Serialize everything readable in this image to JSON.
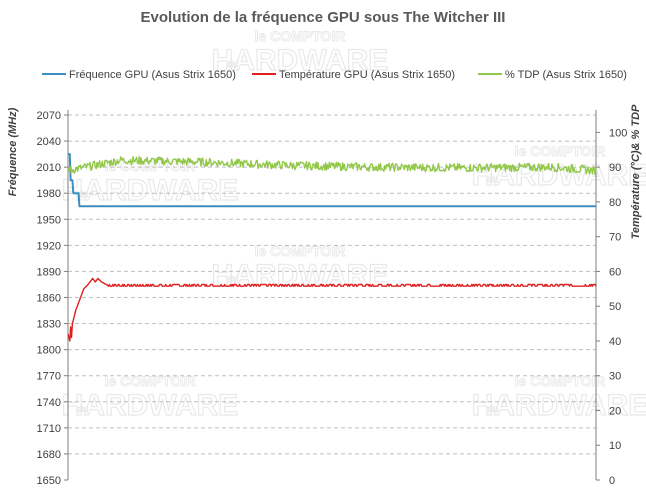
{
  "watermark": {
    "line1": "le COMPTOIR",
    "line2": "HARDWARE",
    "du": "du"
  },
  "chart_data": {
    "type": "line",
    "title": "Evolution de la fréquence GPU sous The Witcher III",
    "legend_position": "top",
    "grid": true,
    "y_left": {
      "label": "Fréquence (MHz)",
      "min": 1650,
      "max": 2070,
      "step": 30,
      "ticks": [
        "1650",
        "1680",
        "1710",
        "1740",
        "1770",
        "1800",
        "1830",
        "1860",
        "1890",
        "1920",
        "1950",
        "1980",
        "2010",
        "2040",
        "2070"
      ]
    },
    "y_right": {
      "label": "Température (°C)& % TDP",
      "min": 0,
      "max": 105,
      "step": 10,
      "ticks": [
        "0",
        "10",
        "20",
        "30",
        "40",
        "50",
        "60",
        "70",
        "80",
        "90",
        "100"
      ]
    },
    "x": {
      "min": 0,
      "max": 600
    },
    "series": [
      {
        "name": "Fréquence GPU (Asus Strix 1650)",
        "color": "#3a8fc0",
        "axis": "left",
        "points": [
          [
            0,
            2025
          ],
          [
            2,
            2025
          ],
          [
            3,
            1995
          ],
          [
            5,
            1995
          ],
          [
            6,
            1980
          ],
          [
            12,
            1980
          ],
          [
            13,
            1965
          ],
          [
            600,
            1965
          ]
        ]
      },
      {
        "name": "Température GPU  (Asus Strix 1650)",
        "color": "#e02020",
        "axis": "right",
        "points": [
          [
            0,
            42
          ],
          [
            2,
            40
          ],
          [
            3,
            44
          ],
          [
            4,
            41
          ],
          [
            5,
            45
          ],
          [
            7,
            47
          ],
          [
            9,
            49
          ],
          [
            12,
            51
          ],
          [
            15,
            53
          ],
          [
            18,
            55
          ],
          [
            22,
            56
          ],
          [
            25,
            57
          ],
          [
            28,
            58
          ],
          [
            31,
            57
          ],
          [
            34,
            58
          ],
          [
            38,
            57
          ],
          [
            45,
            56
          ],
          [
            600,
            56
          ]
        ],
        "steady_value": 56,
        "steady_jitter": 0.6
      },
      {
        "name": "% TDP (Asus Strix 1650)",
        "color": "#92c84a",
        "axis": "right",
        "points": [
          [
            0,
            89
          ],
          [
            60,
            92
          ],
          [
            150,
            91.5
          ],
          [
            250,
            90.5
          ],
          [
            350,
            90
          ],
          [
            450,
            89.8
          ],
          [
            550,
            90
          ],
          [
            600,
            89
          ]
        ],
        "jitter": 1.2
      }
    ]
  }
}
